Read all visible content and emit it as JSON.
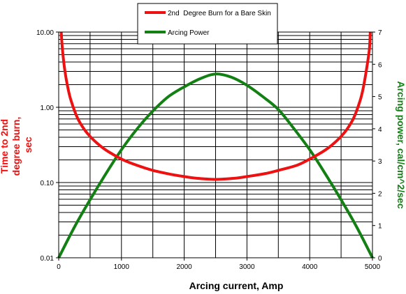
{
  "chart_data": {
    "type": "line",
    "xlabel": "Arcing current, Amp",
    "ylabel_left": [
      "Time to 2nd",
      "degree burn,",
      "sec"
    ],
    "ylabel_right": "Arcing power, cal/cm^2/sec",
    "xlim": [
      0,
      5000
    ],
    "y_left_scale": "log",
    "y_left_lim": [
      0.01,
      10
    ],
    "y_right_lim": [
      0,
      7
    ],
    "x_ticks": [
      "0",
      "1000",
      "2000",
      "3000",
      "4000",
      "5000"
    ],
    "y_left_ticks": [
      "0.01",
      "0.10",
      "1.00",
      "10.00"
    ],
    "y_right_ticks": [
      "0",
      "1",
      "2",
      "3",
      "4",
      "5",
      "6",
      "7"
    ],
    "grid": true,
    "legend_position": "top-center",
    "colors": {
      "burn": "#ee1111",
      "power": "#138013",
      "left_title": "#ee1111",
      "right_title": "#138013"
    },
    "series": [
      {
        "name": "2nd  Degree Burn for a Bare Skin",
        "axis": "left",
        "x": [
          40,
          60,
          100,
          150,
          200,
          300,
          400,
          500,
          600,
          700,
          800,
          1000,
          1200,
          1500,
          1800,
          2000,
          2200,
          2500,
          2800,
          3000,
          3300,
          3500,
          3800,
          4000,
          4200,
          4300,
          4400,
          4500,
          4600,
          4700,
          4800,
          4850,
          4900,
          4950,
          4965
        ],
        "values": [
          10.0,
          5.8,
          3.0,
          1.75,
          1.2,
          0.72,
          0.52,
          0.41,
          0.34,
          0.29,
          0.255,
          0.205,
          0.175,
          0.145,
          0.128,
          0.12,
          0.114,
          0.11,
          0.114,
          0.12,
          0.132,
          0.145,
          0.17,
          0.205,
          0.255,
          0.29,
          0.34,
          0.41,
          0.52,
          0.72,
          1.2,
          1.75,
          3.0,
          5.8,
          10.0
        ]
      },
      {
        "name": "Arcing Power",
        "axis": "right",
        "x": [
          0,
          250,
          500,
          750,
          1000,
          1250,
          1500,
          1750,
          2000,
          2250,
          2500,
          2750,
          3000,
          3250,
          3500,
          3750,
          4000,
          4250,
          4500,
          4750,
          5000
        ],
        "values": [
          0.0,
          0.95,
          1.8,
          2.6,
          3.35,
          4.0,
          4.55,
          5.0,
          5.3,
          5.55,
          5.7,
          5.6,
          5.35,
          5.0,
          4.6,
          4.0,
          3.35,
          2.6,
          1.8,
          0.95,
          0.0
        ]
      }
    ]
  }
}
